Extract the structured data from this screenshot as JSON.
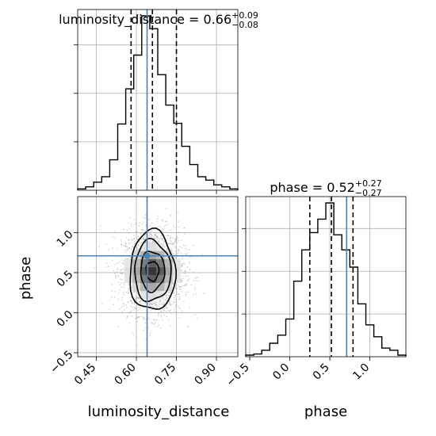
{
  "chart_data": {
    "type": "corner",
    "colors": {
      "truth": "#4682b4",
      "lines": "#000000",
      "scatter": "#9a9a9a"
    },
    "parameters": [
      {
        "name": "luminosity_distance",
        "label": "luminosity_distance",
        "title_prefix": "luminosity_distance = ",
        "median": "0.66",
        "plus": "+0.09",
        "minus": "−0.08",
        "quantiles": [
          0.58,
          0.66,
          0.75
        ],
        "truth": 0.64,
        "range": [
          0.38,
          0.98
        ],
        "ticks": [
          0.45,
          0.6,
          0.75,
          0.9
        ],
        "tick_labels": [
          "0.45",
          "0.60",
          "0.75",
          "0.90"
        ],
        "hist": {
          "edges": [
            0.38,
            0.41,
            0.44,
            0.47,
            0.5,
            0.53,
            0.56,
            0.59,
            0.62,
            0.65,
            0.68,
            0.71,
            0.74,
            0.77,
            0.8,
            0.83,
            0.86,
            0.89,
            0.92,
            0.95,
            0.98
          ],
          "counts": [
            2,
            5,
            12,
            20,
            45,
            98,
            150,
            200,
            258,
            239,
            171,
            126,
            99,
            65,
            38,
            20,
            15,
            8,
            5,
            2
          ]
        }
      },
      {
        "name": "phase",
        "label": "phase",
        "title_prefix": "phase = ",
        "median": "0.52",
        "plus": "+0.27",
        "minus": "−0.27",
        "quantiles": [
          0.25,
          0.52,
          0.79
        ],
        "truth": 0.71,
        "range": [
          -0.55,
          1.45
        ],
        "ticks": [
          -0.5,
          0.0,
          0.5,
          1.0
        ],
        "tick_labels": [
          "−0.5",
          "0.0",
          "0.5",
          "1.0"
        ],
        "hist": {
          "edges": [
            -0.55,
            -0.45,
            -0.35,
            -0.25,
            -0.15,
            -0.05,
            0.05,
            0.15,
            0.25,
            0.35,
            0.45,
            0.55,
            0.65,
            0.75,
            0.85,
            0.95,
            1.05,
            1.15,
            1.25,
            1.35,
            1.45
          ],
          "counts": [
            3,
            5,
            12,
            25,
            40,
            70,
            140,
            198,
            230,
            255,
            285,
            226,
            198,
            166,
            98,
            59,
            37,
            16,
            12,
            3
          ]
        }
      }
    ],
    "joint": {
      "x": "luminosity_distance",
      "y": "phase",
      "contours": [
        {
          "level": 0.39,
          "rx": 0.024,
          "ry": 0.12
        },
        {
          "level": 0.68,
          "rx": 0.045,
          "ry": 0.25
        },
        {
          "level": 0.95,
          "rx": 0.068,
          "ry": 0.38
        },
        {
          "level": 0.99,
          "rx": 0.085,
          "ry": 0.5
        }
      ],
      "center": [
        0.66,
        0.52
      ],
      "grid": true
    },
    "grid": true
  }
}
